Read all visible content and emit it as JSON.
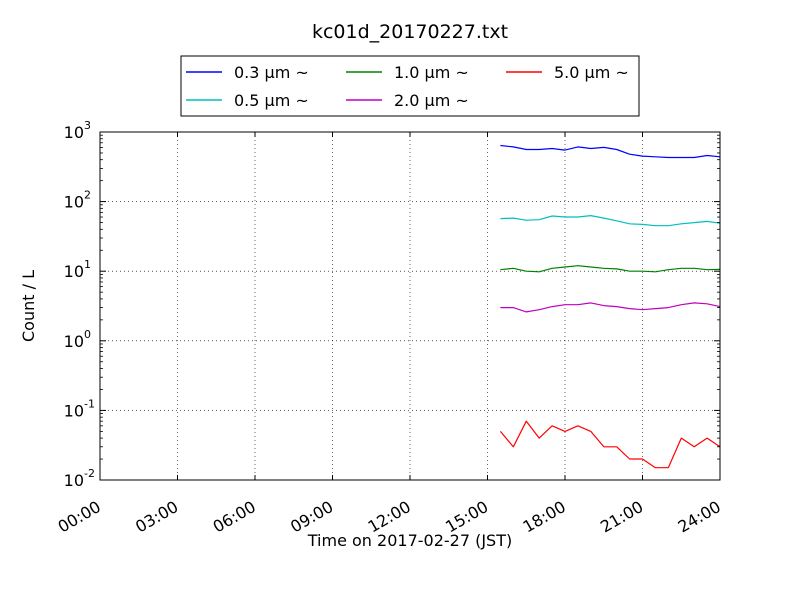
{
  "chart_data": {
    "type": "line",
    "title": "kc01d_20170227.txt",
    "xlabel": "Time on 2017-02-27 (JST)",
    "ylabel": "Count / L",
    "y_scale": "log",
    "xlim": [
      "00:00",
      "24:00"
    ],
    "ylim": [
      0.01,
      1000
    ],
    "grid": true,
    "legend_placement": "top-center",
    "x_ticks": [
      "00:00",
      "03:00",
      "06:00",
      "09:00",
      "12:00",
      "15:00",
      "18:00",
      "21:00",
      "24:00"
    ],
    "y_ticks": [
      {
        "base": "10",
        "exp": "-2",
        "value": 0.01
      },
      {
        "base": "10",
        "exp": "-1",
        "value": 0.1
      },
      {
        "base": "10",
        "exp": "0",
        "value": 1
      },
      {
        "base": "10",
        "exp": "1",
        "value": 10
      },
      {
        "base": "10",
        "exp": "2",
        "value": 100
      },
      {
        "base": "10",
        "exp": "3",
        "value": 1000
      }
    ],
    "series": [
      {
        "name": "0.3 μm ~",
        "color": "#0000ff",
        "x": [
          "15:30",
          "16:00",
          "16:30",
          "17:00",
          "17:30",
          "18:00",
          "18:30",
          "19:00",
          "19:30",
          "20:00",
          "20:30",
          "21:00",
          "21:30",
          "22:00",
          "22:30",
          "23:00",
          "23:30",
          "24:00"
        ],
        "values": [
          640,
          610,
          560,
          560,
          580,
          550,
          610,
          580,
          600,
          560,
          480,
          450,
          440,
          430,
          430,
          430,
          460,
          440
        ]
      },
      {
        "name": "0.5 μm ~",
        "color": "#00bfbf",
        "x": [
          "15:30",
          "16:00",
          "16:30",
          "17:00",
          "17:30",
          "18:00",
          "18:30",
          "19:00",
          "19:30",
          "20:00",
          "20:30",
          "21:00",
          "21:30",
          "22:00",
          "22:30",
          "23:00",
          "23:30",
          "24:00"
        ],
        "values": [
          57,
          58,
          54,
          55,
          62,
          60,
          60,
          63,
          58,
          53,
          48,
          47,
          45,
          45,
          48,
          50,
          52,
          49
        ]
      },
      {
        "name": "1.0 μm ~",
        "color": "#008000",
        "x": [
          "15:30",
          "16:00",
          "16:30",
          "17:00",
          "17:30",
          "18:00",
          "18:30",
          "19:00",
          "19:30",
          "20:00",
          "20:30",
          "21:00",
          "21:30",
          "22:00",
          "22:30",
          "23:00",
          "23:30",
          "24:00"
        ],
        "values": [
          10.5,
          11,
          10,
          9.8,
          11,
          11.5,
          12,
          11.5,
          11,
          10.8,
          10,
          10,
          9.8,
          10.5,
          11,
          11,
          10.5,
          10.6
        ]
      },
      {
        "name": "2.0 μm ~",
        "color": "#bf00bf",
        "x": [
          "15:30",
          "16:00",
          "16:30",
          "17:00",
          "17:30",
          "18:00",
          "18:30",
          "19:00",
          "19:30",
          "20:00",
          "20:30",
          "21:00",
          "21:30",
          "22:00",
          "22:30",
          "23:00",
          "23:30",
          "24:00"
        ],
        "values": [
          3.0,
          3.0,
          2.6,
          2.8,
          3.1,
          3.3,
          3.3,
          3.5,
          3.2,
          3.1,
          2.9,
          2.8,
          2.9,
          3.0,
          3.3,
          3.5,
          3.4,
          3.1
        ]
      },
      {
        "name": "5.0 μm ~",
        "color": "#ff0000",
        "x": [
          "15:30",
          "16:00",
          "16:30",
          "17:00",
          "17:30",
          "18:00",
          "18:30",
          "19:00",
          "19:30",
          "20:00",
          "20:30",
          "21:00",
          "21:30",
          "22:00",
          "22:30",
          "23:00",
          "23:30",
          "24:00"
        ],
        "values": [
          0.05,
          0.03,
          0.07,
          0.04,
          0.06,
          0.05,
          0.06,
          0.05,
          0.03,
          0.03,
          0.02,
          0.02,
          0.015,
          0.015,
          0.04,
          0.03,
          0.04,
          0.03
        ]
      }
    ],
    "legend_layout": [
      [
        0,
        2,
        4
      ],
      [
        1,
        3
      ]
    ]
  }
}
